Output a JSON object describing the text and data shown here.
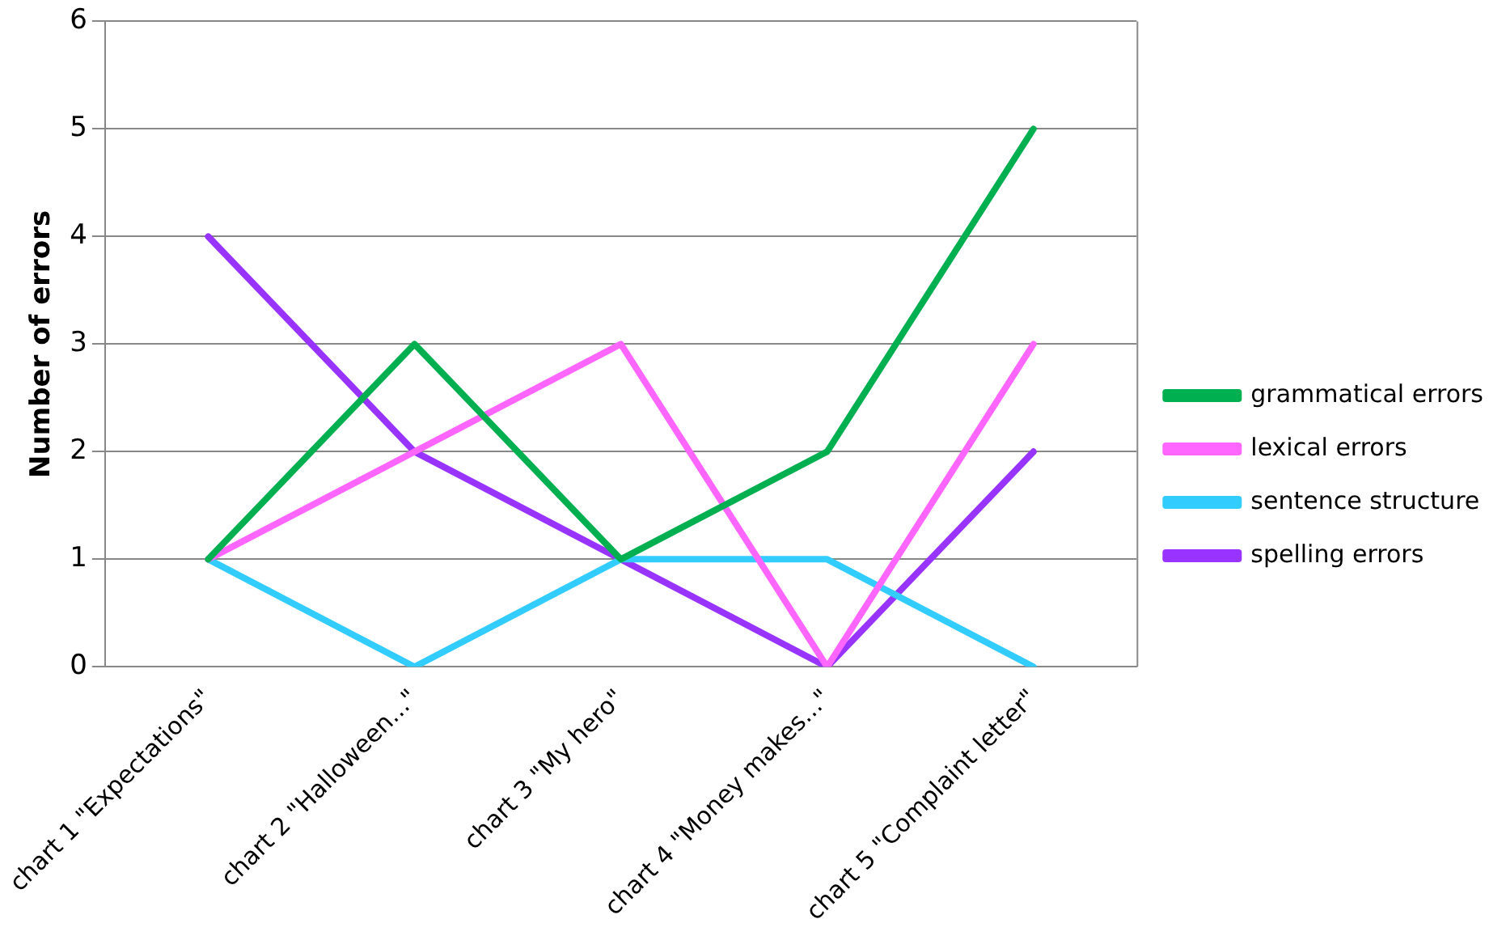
{
  "chart_data": {
    "type": "line",
    "ylabel": "Number of errors",
    "categories": [
      "chart 1 \"Expectations\"",
      "chart 2 \"Halloween...\"",
      "chart 3 \"My hero\"",
      "chart 4 \"Money makes...\"",
      "chart 5 \"Complaint letter\""
    ],
    "series": [
      {
        "name": "grammatical errors",
        "color": "#00b050",
        "values": [
          1,
          3,
          1,
          2,
          5
        ]
      },
      {
        "name": "lexical errors",
        "color": "#ff66ff",
        "values": [
          1,
          2,
          3,
          0,
          3
        ]
      },
      {
        "name": "sentence structure",
        "color": "#33ccff",
        "values": [
          1,
          0,
          1,
          1,
          0
        ]
      },
      {
        "name": "spelling errors",
        "color": "#9933ff",
        "values": [
          4,
          2,
          1,
          0,
          2
        ]
      }
    ],
    "ylim": [
      0,
      6
    ],
    "yticks": [
      0,
      1,
      2,
      3,
      4,
      5,
      6
    ],
    "grid": "y",
    "legend": "right",
    "marker": "none",
    "line_style": "solid"
  }
}
